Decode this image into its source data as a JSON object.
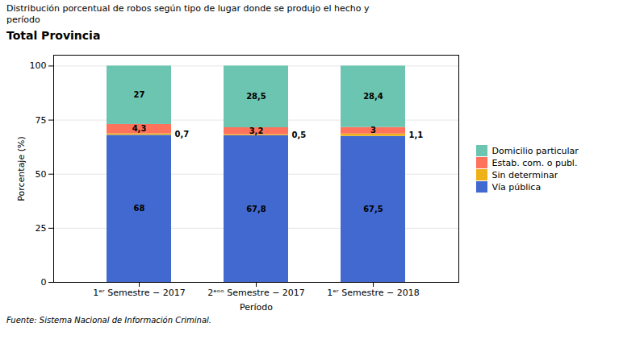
{
  "chart_data": {
    "type": "bar",
    "stacked": true,
    "title": "Total Provincia",
    "subtitle": "Distribución porcentual de robos según tipo de lugar donde se produjo el hecho y\nperíodo",
    "caption": "Fuente:  Sistema Nacional de Información Criminal.",
    "xlabel": "Período",
    "ylabel": "Porcentaje (%)",
    "categories": [
      "1ᵉʳ Semestre − 2017",
      "2ᵉᵒᵒ Semestre − 2017",
      "1ᵉʳ Semestre − 2018"
    ],
    "series": [
      {
        "name": "Vía pública",
        "values": [
          68.0,
          67.8,
          67.5
        ],
        "value_labels": [
          "68",
          "67,8",
          "67,5"
        ]
      },
      {
        "name": "Sin determinar",
        "values": [
          0.7,
          0.5,
          1.1
        ],
        "value_labels": [
          "0,7",
          "0,5",
          "1,1"
        ]
      },
      {
        "name": "Estab. com. o publ.",
        "values": [
          4.3,
          3.2,
          3.0
        ],
        "value_labels": [
          "4,3",
          "3,2",
          "3"
        ]
      },
      {
        "name": "Domicilio particular",
        "values": [
          27.0,
          28.5,
          28.4
        ],
        "value_labels": [
          "27",
          "28,5",
          "28,4"
        ]
      }
    ],
    "ylim": [
      0,
      105
    ],
    "yticks": [
      0,
      25,
      50,
      75,
      100
    ],
    "grid": true,
    "legend": "right",
    "data_labels": true
  }
}
